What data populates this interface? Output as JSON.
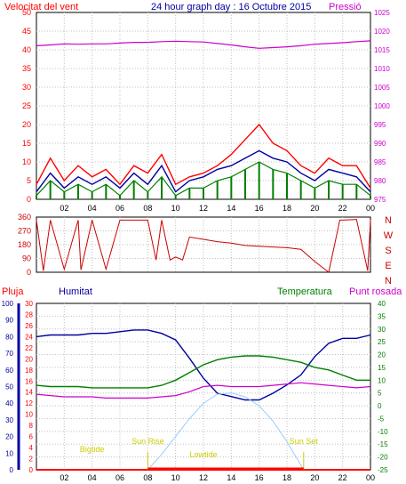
{
  "title": "24 hour graph day : 16 Octubre 2015",
  "labels": {
    "wind_speed": "Velocitat del vent",
    "pressure": "Pressió",
    "rain": "Pluja",
    "humidity": "Humitat",
    "temperature": "Temperatura",
    "dew_point": "Punt rosada",
    "sun_rise": "Sun Rise",
    "sun_set": "Sun Set",
    "high_tide": "Bigtide",
    "low_tide": "Lowtide"
  },
  "colors": {
    "wind_speed": "#ff0000",
    "wind_gust": "#0000a0",
    "wind_avg": "#008000",
    "pressure": "#cc00cc",
    "wind_dir": "#cc0000",
    "rain": "#ff0000",
    "humidity": "#0000a0",
    "temperature": "#008000",
    "dew_point": "#cc00cc",
    "solar": "#99ccff",
    "sun_label": "#cccc00",
    "grid": "#c0c0c0",
    "frame": "#000000"
  },
  "chart_data": [
    {
      "type": "line",
      "x_tick_labels": [
        "02",
        "04",
        "06",
        "08",
        "10",
        "12",
        "14",
        "16",
        "18",
        "20",
        "22",
        "00"
      ],
      "y_left": {
        "label": "Velocitat del vent",
        "ylim": [
          0,
          50
        ],
        "ticks": [
          0,
          5,
          10,
          15,
          20,
          25,
          30,
          35,
          40,
          45,
          50
        ]
      },
      "y_right": {
        "label": "Pressió",
        "ylim": [
          975,
          1025
        ],
        "ticks": [
          975,
          980,
          985,
          990,
          995,
          1000,
          1005,
          1010,
          1015,
          1020,
          1025
        ]
      },
      "grid": true,
      "series": [
        {
          "name": "gust",
          "x": [
            0,
            1,
            2,
            3,
            4,
            5,
            6,
            7,
            8,
            9,
            10,
            11,
            12,
            13,
            14,
            15,
            16,
            17,
            18,
            19,
            20,
            21,
            22,
            23,
            24
          ],
          "values": [
            4,
            11,
            5,
            9,
            6,
            8,
            4,
            9,
            7,
            12,
            4,
            6,
            7,
            9,
            12,
            16,
            20,
            15,
            13,
            9,
            7,
            11,
            9,
            9,
            3
          ]
        },
        {
          "name": "average",
          "x": [
            0,
            1,
            2,
            3,
            4,
            5,
            6,
            7,
            8,
            9,
            10,
            11,
            12,
            13,
            14,
            15,
            16,
            17,
            18,
            19,
            20,
            21,
            22,
            23,
            24
          ],
          "values": [
            2,
            7,
            3,
            6,
            4,
            6,
            3,
            7,
            4,
            9,
            2,
            5,
            6,
            8,
            9,
            11,
            13,
            11,
            10,
            7,
            5,
            8,
            7,
            6,
            2
          ]
        },
        {
          "name": "low",
          "x": [
            0,
            1,
            2,
            3,
            4,
            5,
            6,
            7,
            8,
            9,
            10,
            11,
            12,
            13,
            14,
            15,
            16,
            17,
            18,
            19,
            20,
            21,
            22,
            23,
            24
          ],
          "values": [
            1,
            5,
            2,
            4,
            2,
            4,
            1,
            5,
            2,
            6,
            1,
            3,
            3,
            5,
            6,
            8,
            10,
            8,
            7,
            5,
            3,
            5,
            4,
            4,
            1
          ]
        },
        {
          "name": "pressure",
          "x": [
            0,
            1,
            2,
            3,
            4,
            5,
            6,
            7,
            8,
            9,
            10,
            11,
            12,
            13,
            14,
            15,
            16,
            17,
            18,
            19,
            20,
            21,
            22,
            23,
            24
          ],
          "values": [
            1016.1,
            1016.3,
            1016.6,
            1016.5,
            1016.6,
            1016.6,
            1016.8,
            1017.0,
            1017.0,
            1017.2,
            1017.3,
            1017.2,
            1017.1,
            1016.7,
            1016.3,
            1015.8,
            1015.4,
            1015.6,
            1015.8,
            1016.1,
            1016.5,
            1016.7,
            1016.9,
            1017.2,
            1017.4
          ]
        }
      ]
    },
    {
      "type": "line",
      "x_tick_labels": [
        "02",
        "04",
        "06",
        "08",
        "10",
        "12",
        "14",
        "16",
        "18",
        "20",
        "22",
        "00"
      ],
      "y_left": {
        "label": "",
        "ylim": [
          0,
          360
        ],
        "ticks": [
          0,
          90,
          180,
          270,
          360
        ]
      },
      "y_right_labels": [
        "N",
        "W",
        "S",
        "E",
        "N"
      ],
      "grid": true,
      "series": [
        {
          "name": "direction",
          "x": [
            0,
            0.5,
            1,
            2,
            3,
            3.2,
            4,
            5,
            6,
            7,
            8,
            8.6,
            9,
            9.6,
            10,
            10.5,
            11,
            12,
            13,
            14,
            15,
            16,
            17,
            18,
            19,
            20,
            21,
            21.8,
            22,
            23,
            23.8,
            24
          ],
          "values": [
            340,
            10,
            340,
            20,
            340,
            15,
            340,
            20,
            340,
            340,
            340,
            80,
            340,
            80,
            100,
            80,
            230,
            215,
            200,
            190,
            175,
            170,
            165,
            160,
            150,
            70,
            0,
            340,
            340,
            345,
            10,
            340
          ]
        }
      ]
    },
    {
      "type": "line",
      "x_tick_labels": [
        "02",
        "04",
        "06",
        "08",
        "10",
        "12",
        "14",
        "16",
        "18",
        "20",
        "22",
        "00"
      ],
      "axes": {
        "rain": {
          "label": "Pluja",
          "ylim": [
            0,
            100
          ],
          "ticks": [
            0,
            10,
            20,
            30,
            40,
            50,
            60,
            70,
            80,
            90,
            100
          ]
        },
        "humidity": {
          "label": "Humitat",
          "ylim": [
            0,
            30
          ],
          "ticks": [
            0,
            2,
            4,
            6,
            8,
            10,
            12,
            14,
            16,
            18,
            20,
            22,
            24,
            26,
            28,
            30
          ]
        },
        "temperature": {
          "label": "Temperatura",
          "ylim": [
            -25,
            40
          ],
          "ticks": [
            -25,
            -20,
            -15,
            -10,
            -5,
            0,
            5,
            10,
            15,
            20,
            25,
            30,
            35,
            40
          ]
        }
      },
      "annotations": {
        "sun_rise_hour": 8.0,
        "sun_set_hour": 19.2,
        "high_tide_hour": 4.0,
        "low_tide_hour": 12.0
      },
      "grid": true,
      "series": [
        {
          "name": "humidity",
          "axis": "rain",
          "x": [
            0,
            1,
            2,
            3,
            4,
            5,
            6,
            7,
            8,
            9,
            10,
            11,
            12,
            13,
            14,
            15,
            16,
            17,
            18,
            19,
            20,
            21,
            22,
            23,
            24
          ],
          "values": [
            80,
            81,
            81,
            81,
            82,
            82,
            83,
            84,
            84,
            82,
            78,
            67,
            55,
            46,
            44,
            42,
            42,
            46,
            51,
            57,
            68,
            76,
            79,
            79,
            81
          ]
        },
        {
          "name": "temperature",
          "axis": "temperature",
          "x": [
            0,
            1,
            2,
            3,
            4,
            5,
            6,
            7,
            8,
            9,
            10,
            11,
            12,
            13,
            14,
            15,
            16,
            17,
            18,
            19,
            20,
            21,
            22,
            23,
            24
          ],
          "values": [
            8,
            7.5,
            7.5,
            7.5,
            7,
            7,
            7,
            7,
            7,
            8,
            10,
            13,
            16,
            18,
            19,
            19.5,
            19.5,
            19,
            18,
            17,
            15,
            14,
            12,
            10,
            10
          ]
        },
        {
          "name": "dew_point",
          "axis": "temperature",
          "x": [
            0,
            1,
            2,
            3,
            4,
            5,
            6,
            7,
            8,
            9,
            10,
            11,
            12,
            13,
            14,
            15,
            16,
            17,
            18,
            19,
            20,
            21,
            22,
            23,
            24
          ],
          "values": [
            4.5,
            4,
            3.5,
            3.5,
            3.5,
            3,
            3,
            3,
            3,
            3.5,
            4,
            5.5,
            7.5,
            8,
            7.5,
            7.5,
            7.5,
            8,
            8.5,
            9,
            8.5,
            8,
            7.5,
            7,
            7.5
          ]
        },
        {
          "name": "solar",
          "axis": "temperature",
          "x": [
            8,
            9,
            10,
            11,
            12,
            13,
            14,
            15,
            16,
            17,
            18,
            19.2
          ],
          "values": [
            -25,
            -19,
            -12,
            -5,
            1,
            4.5,
            5,
            3.5,
            0,
            -6,
            -14,
            -25
          ]
        },
        {
          "name": "rain",
          "axis": "rain",
          "x": [
            0,
            24
          ],
          "values": [
            0,
            0
          ]
        }
      ]
    }
  ]
}
